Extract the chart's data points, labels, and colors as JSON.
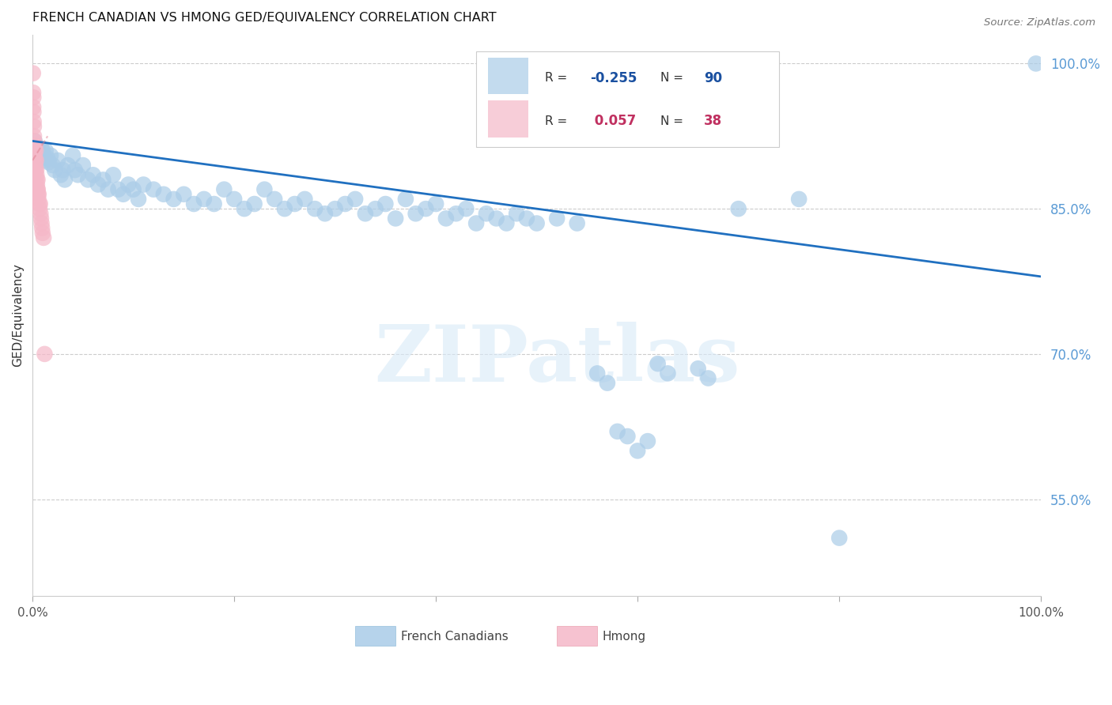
{
  "title": "FRENCH CANADIAN VS HMONG GED/EQUIVALENCY CORRELATION CHART",
  "source": "Source: ZipAtlas.com",
  "ylabel": "GED/Equivalency",
  "right_yticks": [
    55.0,
    70.0,
    85.0,
    100.0
  ],
  "legend_blue_R": "-0.255",
  "legend_blue_N": "90",
  "legend_pink_R": "0.057",
  "legend_pink_N": "38",
  "blue_color": "#aacce8",
  "pink_color": "#f5b8c8",
  "regression_blue_color": "#2070c0",
  "blue_R_color": "#1a50a0",
  "pink_R_color": "#c03060",
  "watermark_text": "ZIPatlas",
  "blue_points": [
    [
      0.2,
      92.0
    ],
    [
      0.3,
      91.5
    ],
    [
      0.5,
      91.0
    ],
    [
      0.7,
      90.8
    ],
    [
      0.9,
      91.2
    ],
    [
      1.0,
      91.0
    ],
    [
      1.1,
      90.5
    ],
    [
      1.2,
      90.0
    ],
    [
      1.3,
      91.0
    ],
    [
      1.5,
      90.2
    ],
    [
      1.6,
      89.8
    ],
    [
      1.8,
      90.5
    ],
    [
      2.0,
      89.5
    ],
    [
      2.2,
      89.0
    ],
    [
      2.5,
      90.0
    ],
    [
      2.8,
      88.5
    ],
    [
      3.0,
      89.0
    ],
    [
      3.2,
      88.0
    ],
    [
      3.5,
      89.5
    ],
    [
      4.0,
      90.5
    ],
    [
      4.2,
      89.0
    ],
    [
      4.5,
      88.5
    ],
    [
      5.0,
      89.5
    ],
    [
      5.5,
      88.0
    ],
    [
      6.0,
      88.5
    ],
    [
      6.5,
      87.5
    ],
    [
      7.0,
      88.0
    ],
    [
      7.5,
      87.0
    ],
    [
      8.0,
      88.5
    ],
    [
      8.5,
      87.0
    ],
    [
      9.0,
      86.5
    ],
    [
      9.5,
      87.5
    ],
    [
      10.0,
      87.0
    ],
    [
      10.5,
      86.0
    ],
    [
      11.0,
      87.5
    ],
    [
      12.0,
      87.0
    ],
    [
      13.0,
      86.5
    ],
    [
      14.0,
      86.0
    ],
    [
      15.0,
      86.5
    ],
    [
      16.0,
      85.5
    ],
    [
      17.0,
      86.0
    ],
    [
      18.0,
      85.5
    ],
    [
      19.0,
      87.0
    ],
    [
      20.0,
      86.0
    ],
    [
      21.0,
      85.0
    ],
    [
      22.0,
      85.5
    ],
    [
      23.0,
      87.0
    ],
    [
      24.0,
      86.0
    ],
    [
      25.0,
      85.0
    ],
    [
      26.0,
      85.5
    ],
    [
      27.0,
      86.0
    ],
    [
      28.0,
      85.0
    ],
    [
      29.0,
      84.5
    ],
    [
      30.0,
      85.0
    ],
    [
      31.0,
      85.5
    ],
    [
      32.0,
      86.0
    ],
    [
      33.0,
      84.5
    ],
    [
      34.0,
      85.0
    ],
    [
      35.0,
      85.5
    ],
    [
      36.0,
      84.0
    ],
    [
      37.0,
      86.0
    ],
    [
      38.0,
      84.5
    ],
    [
      39.0,
      85.0
    ],
    [
      40.0,
      85.5
    ],
    [
      41.0,
      84.0
    ],
    [
      42.0,
      84.5
    ],
    [
      43.0,
      85.0
    ],
    [
      44.0,
      83.5
    ],
    [
      45.0,
      84.5
    ],
    [
      46.0,
      84.0
    ],
    [
      47.0,
      83.5
    ],
    [
      48.0,
      84.5
    ],
    [
      49.0,
      84.0
    ],
    [
      50.0,
      83.5
    ],
    [
      52.0,
      84.0
    ],
    [
      54.0,
      83.5
    ],
    [
      56.0,
      68.0
    ],
    [
      57.0,
      67.0
    ],
    [
      58.0,
      62.0
    ],
    [
      59.0,
      61.5
    ],
    [
      60.0,
      60.0
    ],
    [
      61.0,
      61.0
    ],
    [
      62.0,
      69.0
    ],
    [
      63.0,
      68.0
    ],
    [
      66.0,
      68.5
    ],
    [
      67.0,
      67.5
    ],
    [
      70.0,
      85.0
    ],
    [
      76.0,
      86.0
    ],
    [
      80.0,
      51.0
    ],
    [
      99.5,
      100.0
    ]
  ],
  "pink_points": [
    [
      0.05,
      99.0
    ],
    [
      0.07,
      97.0
    ],
    [
      0.08,
      95.5
    ],
    [
      0.09,
      96.5
    ],
    [
      0.1,
      95.0
    ],
    [
      0.12,
      94.0
    ],
    [
      0.14,
      93.5
    ],
    [
      0.15,
      92.5
    ],
    [
      0.17,
      91.5
    ],
    [
      0.18,
      92.0
    ],
    [
      0.2,
      91.0
    ],
    [
      0.22,
      90.5
    ],
    [
      0.25,
      91.5
    ],
    [
      0.27,
      90.0
    ],
    [
      0.28,
      89.5
    ],
    [
      0.3,
      89.0
    ],
    [
      0.32,
      91.0
    ],
    [
      0.35,
      90.0
    ],
    [
      0.38,
      89.0
    ],
    [
      0.4,
      88.5
    ],
    [
      0.42,
      88.0
    ],
    [
      0.45,
      87.5
    ],
    [
      0.48,
      87.0
    ],
    [
      0.5,
      88.0
    ],
    [
      0.52,
      87.0
    ],
    [
      0.55,
      86.5
    ],
    [
      0.58,
      86.0
    ],
    [
      0.6,
      86.5
    ],
    [
      0.65,
      85.5
    ],
    [
      0.7,
      85.0
    ],
    [
      0.75,
      85.5
    ],
    [
      0.8,
      84.5
    ],
    [
      0.85,
      84.0
    ],
    [
      0.9,
      83.5
    ],
    [
      0.95,
      83.0
    ],
    [
      1.0,
      82.5
    ],
    [
      1.1,
      82.0
    ],
    [
      1.2,
      70.0
    ]
  ],
  "xlim": [
    0,
    100
  ],
  "ylim": [
    45,
    103
  ],
  "xtick_positions": [
    0,
    20,
    40,
    60,
    80,
    100
  ],
  "xtick_labels": [
    "0.0%",
    "",
    "",
    "",
    "",
    "100.0%"
  ]
}
